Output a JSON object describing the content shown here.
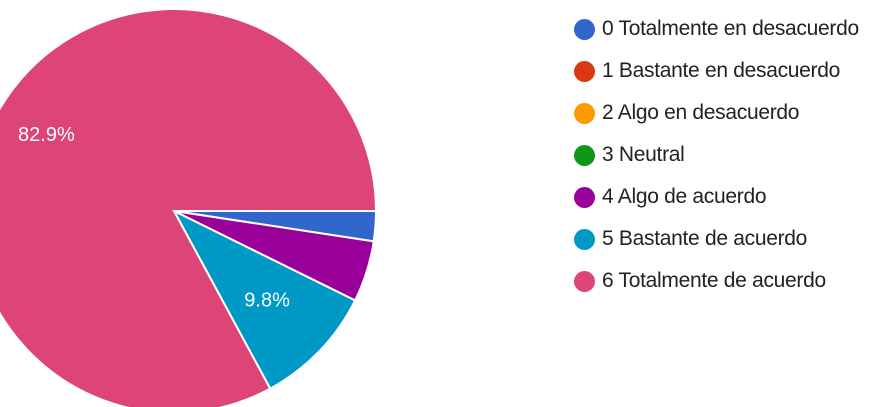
{
  "chart_data": {
    "type": "pie",
    "legend_position": "right",
    "slices": [
      {
        "label": "0 Totalmente en desacuerdo",
        "value": 2.4,
        "color": "#3366cc",
        "value_label": ""
      },
      {
        "label": "1 Bastante en desacuerdo",
        "value": 0,
        "color": "#dc3912",
        "value_label": ""
      },
      {
        "label": "2 Algo en desacuerdo",
        "value": 0,
        "color": "#ff9900",
        "value_label": ""
      },
      {
        "label": "3 Neutral",
        "value": 0,
        "color": "#109618",
        "value_label": ""
      },
      {
        "label": "4 Algo de acuerdo",
        "value": 4.9,
        "color": "#990099",
        "value_label": ""
      },
      {
        "label": "5 Bastante de acuerdo",
        "value": 9.8,
        "color": "#0099c6",
        "value_label": "9.8%"
      },
      {
        "label": "6 Totalmente de acuerdo",
        "value": 82.9,
        "color": "#dd4477",
        "value_label": "82.9%"
      }
    ]
  }
}
